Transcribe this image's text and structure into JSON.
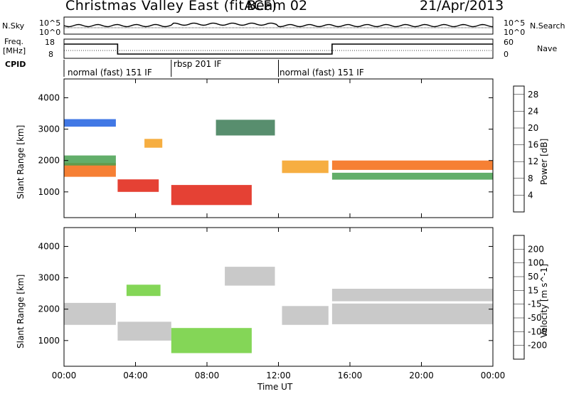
{
  "header": {
    "title": "Christmas Valley East (fitACF)",
    "beam": "Beam 02",
    "date": "21/Apr/2013"
  },
  "aux_panels": {
    "nsky_label": "N.Sky",
    "nsearch_label": "N.Search",
    "freq_label_1": "Freq.",
    "freq_label_2": "[MHz]",
    "nave_label": "Nave",
    "cpid_label": "CPID",
    "noise_left_ticks": [
      "10^5",
      "10^0"
    ],
    "noise_right_ticks": [
      "10^5",
      "10^0"
    ],
    "freq_left_ticks": [
      "18",
      "8"
    ],
    "freq_right_ticks": [
      "60",
      "0"
    ]
  },
  "cpid_modes": [
    {
      "label": "normal (fast) 151 IF",
      "start_hour": 0,
      "end_hour": 6
    },
    {
      "label": "rbsp 201 IF",
      "start_hour": 6,
      "end_hour": 12
    },
    {
      "label": "normal (fast) 151 IF",
      "start_hour": 12,
      "end_hour": 24
    }
  ],
  "colors": {
    "power_scale": [
      "#2525e0",
      "#2060e0",
      "#3b7a55",
      "#46a050",
      "#9ccd3c",
      "#f0d020",
      "#f5a020",
      "#f56a10",
      "#e02010"
    ],
    "velocity_scale": [
      "#2030c0",
      "#3060e0",
      "#2a8a30",
      "#6fcf3a",
      "#c0c0c0",
      "#c0c0c0",
      "#f5a020",
      "#f56a10",
      "#e02010"
    ]
  },
  "chart_data": [
    {
      "type": "heatmap",
      "title": "",
      "xlabel": "Time UT",
      "ylabel": "Slant Range [km]",
      "x_ticks": [
        "00:00",
        "04:00",
        "08:00",
        "12:00",
        "16:00",
        "20:00",
        "00:00"
      ],
      "xlim": [
        0,
        24
      ],
      "y_ticks": [
        1000,
        2000,
        3000,
        4000
      ],
      "ylim": [
        180,
        4600
      ],
      "colorbar_label": "Power [dB]",
      "colorbar_ticks": [
        4,
        8,
        12,
        16,
        20,
        24,
        28
      ],
      "colorbar_range": [
        0,
        30
      ],
      "bands": [
        {
          "t0": 0.0,
          "t1": 2.9,
          "r": 1700,
          "w": 220,
          "v": 24
        },
        {
          "t0": 0.0,
          "t1": 2.9,
          "r": 2000,
          "w": 160,
          "v": 12
        },
        {
          "t0": 0.0,
          "t1": 2.9,
          "r": 3200,
          "w": 120,
          "v": 6
        },
        {
          "t0": 3.0,
          "t1": 5.3,
          "r": 1200,
          "w": 200,
          "v": 27
        },
        {
          "t0": 4.5,
          "t1": 5.5,
          "r": 2550,
          "w": 140,
          "v": 22
        },
        {
          "t0": 6.0,
          "t1": 10.5,
          "r": 900,
          "w": 320,
          "v": 29
        },
        {
          "t0": 8.5,
          "t1": 11.8,
          "r": 3050,
          "w": 250,
          "v": 7
        },
        {
          "t0": 12.2,
          "t1": 14.8,
          "r": 1800,
          "w": 200,
          "v": 21
        },
        {
          "t0": 15.0,
          "t1": 24.0,
          "r": 1850,
          "w": 150,
          "v": 26
        },
        {
          "t0": 15.0,
          "t1": 24.0,
          "r": 1500,
          "w": 110,
          "v": 10
        }
      ]
    },
    {
      "type": "heatmap",
      "title": "",
      "xlabel": "Time UT",
      "ylabel": "Slant Range [km]",
      "x_ticks": [
        "00:00",
        "04:00",
        "08:00",
        "12:00",
        "16:00",
        "20:00",
        "00:00"
      ],
      "xlim": [
        0,
        24
      ],
      "y_ticks": [
        1000,
        2000,
        3000,
        4000
      ],
      "ylim": [
        180,
        4600
      ],
      "colorbar_label": "Velocity [m s^-1]",
      "colorbar_ticks": [
        200,
        100,
        50,
        15,
        -15,
        -50,
        -100,
        -200
      ],
      "colorbar_range": [
        -250,
        250
      ],
      "bands": [
        {
          "t0": 0.0,
          "t1": 2.9,
          "r": 1850,
          "w": 350,
          "v": 0
        },
        {
          "t0": 3.0,
          "t1": 6.0,
          "r": 1300,
          "w": 300,
          "v": 0
        },
        {
          "t0": 3.5,
          "t1": 5.4,
          "r": 2600,
          "w": 180,
          "v": 60
        },
        {
          "t0": 6.0,
          "t1": 10.5,
          "r": 1000,
          "w": 400,
          "v": 30
        },
        {
          "t0": 9.0,
          "t1": 11.8,
          "r": 3050,
          "w": 300,
          "v": -40
        },
        {
          "t0": 12.2,
          "t1": 14.8,
          "r": 1800,
          "w": 300,
          "v": 0
        },
        {
          "t0": 15.0,
          "t1": 24.0,
          "r": 1850,
          "w": 330,
          "v": 0
        },
        {
          "t0": 15.0,
          "t1": 24.0,
          "r": 2450,
          "w": 200,
          "v": 0
        }
      ]
    }
  ]
}
